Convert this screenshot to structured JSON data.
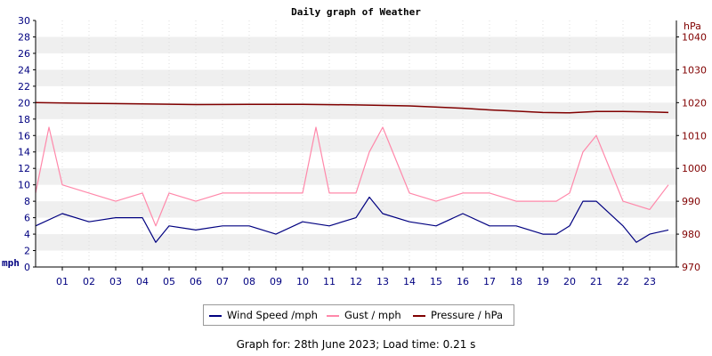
{
  "chart_data": {
    "type": "line",
    "title": "Daily graph of Weather",
    "y_left": {
      "unit_label": "mph",
      "range": [
        0,
        30
      ],
      "ticks": [
        0,
        2,
        4,
        6,
        8,
        10,
        12,
        14,
        16,
        18,
        20,
        22,
        24,
        26,
        28,
        30
      ]
    },
    "y_right": {
      "unit_label": "hPa",
      "range": [
        970,
        1045
      ],
      "ticks": [
        970,
        980,
        990,
        1000,
        1010,
        1020,
        1030,
        1040
      ]
    },
    "x": {
      "range": [
        0,
        24
      ],
      "tick_labels": [
        "01",
        "02",
        "03",
        "04",
        "05",
        "06",
        "07",
        "08",
        "09",
        "10",
        "11",
        "12",
        "13",
        "14",
        "15",
        "16",
        "17",
        "18",
        "19",
        "20",
        "21",
        "22",
        "23"
      ]
    },
    "grid": "horizontal bands",
    "legend": "bottom",
    "series": [
      {
        "name": "Wind Speed /mph",
        "axis": "left",
        "color": "#000080",
        "x": [
          0,
          1,
          2,
          3,
          4,
          4.5,
          5,
          6,
          7,
          8,
          9,
          10,
          11,
          12,
          12.5,
          13,
          14,
          15,
          16,
          17,
          18,
          19,
          19.5,
          20,
          20.5,
          21,
          22,
          22.5,
          23,
          23.7
        ],
        "y": [
          5,
          6.5,
          5.5,
          6,
          6,
          3,
          5,
          4.5,
          5,
          5,
          4,
          5.5,
          5,
          6,
          8.5,
          6.5,
          5.5,
          5,
          6.5,
          5,
          5,
          4,
          4,
          5,
          8,
          8,
          5,
          3,
          4,
          4.5
        ]
      },
      {
        "name": "Gust / mph",
        "axis": "left",
        "color": "#ff88aa",
        "x": [
          0,
          0.5,
          1,
          2,
          3,
          4,
          4.5,
          5,
          6,
          7,
          8,
          9,
          10,
          10.5,
          11,
          12,
          12.5,
          13,
          14,
          15,
          16,
          17,
          18,
          19,
          19.5,
          20,
          20.5,
          21,
          22,
          23,
          23.7
        ],
        "y": [
          9,
          17,
          10,
          9,
          8,
          9,
          5,
          9,
          8,
          9,
          9,
          9,
          9,
          17,
          9,
          9,
          14,
          17,
          9,
          8,
          9,
          9,
          8,
          8,
          8,
          9,
          14,
          16,
          8,
          7,
          10
        ]
      },
      {
        "name": "Pressure / hPa",
        "axis": "right",
        "color": "#800000",
        "x": [
          0,
          2,
          4,
          6,
          8,
          10,
          12,
          14,
          16,
          17,
          18,
          19,
          20,
          21,
          22,
          23,
          23.7
        ],
        "y": [
          1020,
          1019.8,
          1019.6,
          1019.4,
          1019.5,
          1019.5,
          1019.3,
          1019,
          1018.3,
          1017.8,
          1017.4,
          1017,
          1016.9,
          1017.3,
          1017.3,
          1017.2,
          1017
        ]
      }
    ]
  },
  "legend_labels": [
    "Wind Speed /mph",
    "Gust / mph",
    "Pressure / hPa"
  ],
  "footer": "Graph for: 28th June 2023; Load time: 0.21 s"
}
